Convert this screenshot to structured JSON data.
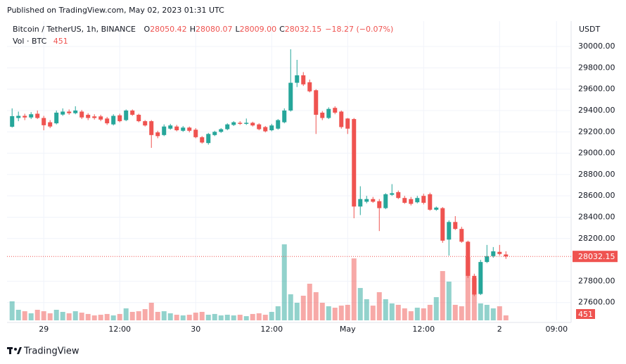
{
  "header": {
    "published": "Published on TradingView.com, May 02, 2023 01:31 UTC",
    "symbol": "Bitcoin / TetherUS, 1h, BINANCE",
    "ohlc": [
      {
        "label": "O",
        "text": "28050.42"
      },
      {
        "label": "H",
        "text": "28080.07"
      },
      {
        "label": "L",
        "text": "28009.00"
      },
      {
        "label": "C",
        "text": "28032.15"
      }
    ],
    "change": "−18.27 (−0.07%)",
    "volume_label": "Vol · BTC",
    "currency": "USDT"
  },
  "footer": {
    "brand": "TradingView"
  },
  "chart_data": {
    "type": "candlestick",
    "up_color": "#26a69a",
    "down_color": "#ef5350",
    "xlim": [
      -0.8,
      88.3
    ],
    "xticks": [
      {
        "value": 5,
        "label": "29"
      },
      {
        "value": 17,
        "label": "12:00"
      },
      {
        "value": 29,
        "label": "30"
      },
      {
        "value": 41,
        "label": "12:00"
      },
      {
        "value": 53,
        "label": "May"
      },
      {
        "value": 65,
        "label": "12:00"
      },
      {
        "value": 77,
        "label": "2"
      },
      {
        "value": 86,
        "label": "09:00"
      }
    ],
    "ylim": [
      27433,
      30238
    ],
    "yticks": [
      {
        "value": 27600,
        "label": "27600.00"
      },
      {
        "value": 27800,
        "label": "27800.00"
      },
      {
        "value": 28200,
        "label": "28200.00"
      },
      {
        "value": 28400,
        "label": "28400.00"
      },
      {
        "value": 28600,
        "label": "28600.00"
      },
      {
        "value": 28800,
        "label": "28800.00"
      },
      {
        "value": 29000,
        "label": "29000.00"
      },
      {
        "value": 29200,
        "label": "29200.00"
      },
      {
        "value": 29400,
        "label": "29400.00"
      },
      {
        "value": 29600,
        "label": "29600.00"
      },
      {
        "value": 29800,
        "label": "29800.00"
      },
      {
        "value": 30000,
        "label": "30000.00"
      }
    ],
    "volume_ylim": [
      0,
      8000
    ],
    "grid": true,
    "open": [
      29248,
      29330,
      29350,
      29335,
      29370,
      29330,
      29290,
      29280,
      29362,
      29390,
      29375,
      29390,
      29360,
      29345,
      29345,
      29325,
      29270,
      29355,
      29310,
      29400,
      29360,
      29300,
      29300,
      29195,
      29170,
      29230,
      29250,
      29210,
      29240,
      29220,
      29150,
      29095,
      29170,
      29200,
      29225,
      29265,
      29285,
      29275,
      29285,
      29270,
      29245,
      29215,
      29230,
      29290,
      29400,
      29660,
      29730,
      29665,
      29590,
      29380,
      29330,
      29425,
      29390,
      29325,
      29320,
      28500,
      28545,
      28570,
      28550,
      28485,
      28610,
      28635,
      28580,
      28570,
      28540,
      28600,
      28615,
      28470,
      28485,
      28190,
      28355,
      28290,
      28170,
      27850,
      27680,
      27980,
      28035,
      28075,
      28050.42
    ],
    "high": [
      29420,
      29390,
      29370,
      29385,
      29400,
      29350,
      29310,
      29400,
      29420,
      29410,
      29440,
      29405,
      29375,
      29365,
      29360,
      29340,
      29365,
      29370,
      29410,
      29410,
      29370,
      29310,
      29310,
      29210,
      29270,
      29275,
      29265,
      29255,
      29250,
      29235,
      29160,
      29190,
      29210,
      29235,
      29280,
      29300,
      29300,
      29325,
      29295,
      29280,
      29255,
      29275,
      29320,
      29420,
      29974,
      29875,
      29760,
      29690,
      29600,
      29395,
      29430,
      29440,
      29400,
      29330,
      29330,
      28690,
      28600,
      28590,
      28570,
      28625,
      28710,
      28650,
      28600,
      28590,
      28600,
      28620,
      28630,
      28500,
      28495,
      28370,
      28410,
      28310,
      28180,
      27870,
      28000,
      28140,
      28120,
      28140,
      28080.07
    ],
    "low": [
      29240,
      29300,
      29310,
      29320,
      29320,
      29215,
      29235,
      29270,
      29350,
      29360,
      29365,
      29320,
      29310,
      29315,
      29300,
      29265,
      29260,
      29290,
      29300,
      29350,
      29290,
      29250,
      29050,
      29140,
      29160,
      29220,
      29205,
      29200,
      29195,
      29140,
      29090,
      29080,
      29160,
      29190,
      29215,
      29255,
      29265,
      29265,
      29250,
      29215,
      29195,
      29205,
      29220,
      29280,
      29390,
      29620,
      29630,
      29570,
      29180,
      29310,
      29320,
      29365,
      29230,
      29180,
      28390,
      28420,
      28530,
      28535,
      28270,
      28475,
      28600,
      28570,
      28525,
      28510,
      28530,
      28520,
      28460,
      28460,
      28160,
      28040,
      28280,
      28160,
      27830,
      27660,
      27670,
      27970,
      28020,
      28040,
      28009.0
    ],
    "close": [
      29347,
      29350,
      29335,
      29365,
      29330,
      29262,
      29250,
      29380,
      29390,
      29375,
      29400,
      29335,
      29330,
      29330,
      29315,
      29280,
      29350,
      29300,
      29400,
      29360,
      29300,
      29260,
      29170,
      29160,
      29250,
      29260,
      29215,
      29240,
      29210,
      29150,
      29100,
      29180,
      29200,
      29225,
      29270,
      29290,
      29275,
      29285,
      29260,
      29225,
      29205,
      29260,
      29310,
      29400,
      29660,
      29730,
      29645,
      29580,
      29360,
      29330,
      29415,
      29380,
      29245,
      29230,
      28500,
      28570,
      28570,
      28545,
      28485,
      28615,
      28625,
      28580,
      28535,
      28525,
      28580,
      28535,
      28470,
      28490,
      28180,
      28355,
      28290,
      28170,
      27850,
      27675,
      27980,
      28035,
      28080,
      28055,
      28032.15
    ],
    "volume": [
      1730,
      960,
      830,
      640,
      960,
      830,
      640,
      960,
      770,
      640,
      830,
      700,
      580,
      450,
      510,
      580,
      450,
      580,
      1090,
      770,
      830,
      1020,
      1600,
      770,
      830,
      640,
      510,
      450,
      510,
      700,
      770,
      510,
      580,
      450,
      510,
      450,
      510,
      380,
      580,
      640,
      510,
      770,
      1280,
      6910,
      2370,
      1600,
      2240,
      3330,
      2560,
      1600,
      1280,
      1150,
      1340,
      1410,
      5630,
      2940,
      1920,
      1340,
      2560,
      1920,
      1540,
      1410,
      1090,
      830,
      1150,
      1090,
      1410,
      2110,
      4480,
      3520,
      1410,
      1280,
      5760,
      3840,
      1540,
      1410,
      1090,
      1280,
      451
    ]
  }
}
